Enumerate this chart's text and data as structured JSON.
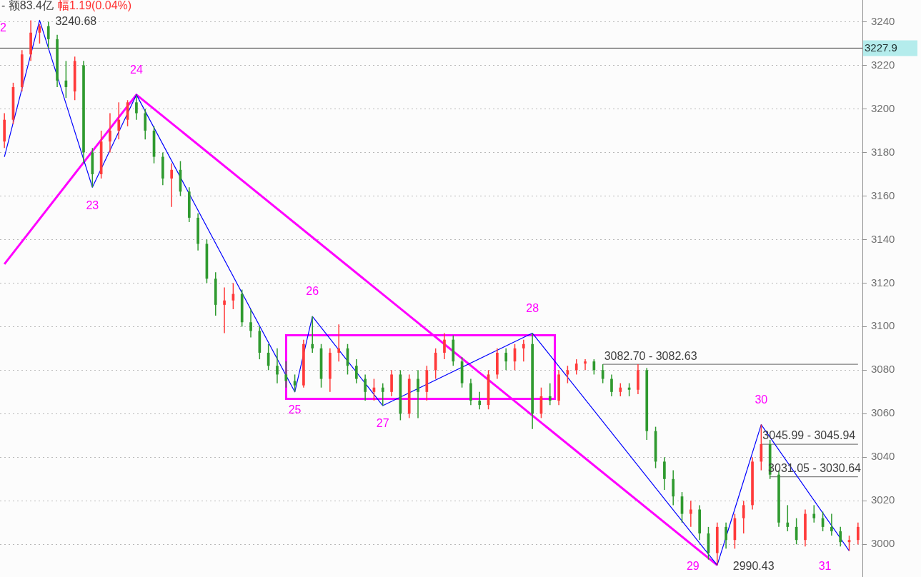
{
  "chart_data": {
    "type": "candlestick",
    "categories": [
      null,
      null,
      null,
      null,
      null,
      null,
      null,
      null,
      null,
      null,
      null,
      null,
      null,
      null,
      null,
      null,
      null,
      null,
      null,
      null,
      null,
      null,
      null,
      null,
      null,
      null,
      null,
      null,
      null,
      null,
      null,
      null,
      null,
      null,
      null,
      null,
      null,
      null,
      null,
      null,
      null,
      null,
      null,
      null,
      null,
      null,
      null,
      null,
      null,
      null,
      null,
      null,
      null,
      null,
      null,
      null,
      null,
      null,
      null,
      null,
      null,
      null,
      null,
      null,
      null,
      null,
      null,
      null,
      null,
      null,
      null,
      null,
      null,
      null,
      null,
      null,
      null,
      null,
      null,
      null,
      null,
      null,
      null,
      null,
      null,
      null,
      null,
      null,
      null,
      null,
      null,
      null,
      null,
      null,
      null,
      null,
      null,
      null
    ],
    "ohlc": [
      [
        3185,
        3198,
        3182,
        3195
      ],
      [
        3195,
        3212,
        3193,
        3210
      ],
      [
        3210,
        3227,
        3208,
        3225
      ],
      [
        3225,
        3240.68,
        3222,
        3235
      ],
      [
        3235,
        3239,
        3230,
        3238
      ],
      [
        3238,
        3240,
        3228,
        3232
      ],
      [
        3232,
        3234,
        3210,
        3213
      ],
      [
        3213,
        3222,
        3205,
        3210
      ],
      [
        3208,
        3224,
        3204,
        3222
      ],
      [
        3220,
        3222,
        3175,
        3180
      ],
      [
        3180,
        3182,
        3164,
        3170
      ],
      [
        3170,
        3190,
        3168,
        3185
      ],
      [
        3185,
        3198,
        3180,
        3190
      ],
      [
        3190,
        3203,
        3186,
        3195
      ],
      [
        3195,
        3204,
        3192,
        3203
      ],
      [
        3203,
        3206.5,
        3195,
        3198
      ],
      [
        3198,
        3200,
        3186,
        3190
      ],
      [
        3190,
        3192,
        3175,
        3178
      ],
      [
        3178,
        3180,
        3165,
        3168
      ],
      [
        3168,
        3175,
        3155,
        3172
      ],
      [
        3172,
        3176,
        3160,
        3162
      ],
      [
        3162,
        3164,
        3148,
        3150
      ],
      [
        3150,
        3152,
        3135,
        3138
      ],
      [
        3138,
        3140,
        3120,
        3122
      ],
      [
        3122,
        3125,
        3105,
        3110
      ],
      [
        3110,
        3118,
        3097,
        3112
      ],
      [
        3112,
        3120,
        3108,
        3115
      ],
      [
        3115,
        3117,
        3100,
        3102
      ],
      [
        3102,
        3108,
        3095,
        3098
      ],
      [
        3098,
        3100,
        3085,
        3088
      ],
      [
        3088,
        3092,
        3080,
        3082
      ],
      [
        3082,
        3090,
        3074,
        3078
      ],
      [
        3078,
        3084,
        3072,
        3075
      ],
      [
        3075,
        3078,
        3070,
        3073
      ],
      [
        3073,
        3094,
        3072,
        3092
      ],
      [
        3092,
        3104.7,
        3088,
        3090
      ],
      [
        3090,
        3092,
        3072,
        3076
      ],
      [
        3076,
        3090,
        3070,
        3088
      ],
      [
        3088,
        3101,
        3084,
        3090
      ],
      [
        3090,
        3092,
        3078,
        3082
      ],
      [
        3082,
        3085,
        3074,
        3076
      ],
      [
        3076,
        3078,
        3066,
        3070
      ],
      [
        3070,
        3076,
        3066,
        3072
      ],
      [
        3072,
        3074,
        3063.7,
        3070
      ],
      [
        3070,
        3080,
        3068,
        3078
      ],
      [
        3078,
        3080,
        3057,
        3060
      ],
      [
        3060,
        3078,
        3058,
        3076
      ],
      [
        3076,
        3080,
        3058,
        3070
      ],
      [
        3070,
        3082,
        3066,
        3080
      ],
      [
        3080,
        3090,
        3076,
        3088
      ],
      [
        3088,
        3097,
        3085,
        3094
      ],
      [
        3094,
        3096,
        3082,
        3084
      ],
      [
        3084,
        3086,
        3072,
        3074
      ],
      [
        3074,
        3076,
        3064,
        3066
      ],
      [
        3066,
        3070,
        3062,
        3064
      ],
      [
        3064,
        3080,
        3062,
        3078
      ],
      [
        3078,
        3090,
        3076,
        3088
      ],
      [
        3088,
        3090,
        3080,
        3084
      ],
      [
        3084,
        3092,
        3080,
        3090
      ],
      [
        3090,
        3094,
        3084,
        3092
      ],
      [
        3092,
        3097,
        3053,
        3060
      ],
      [
        3060,
        3072,
        3058,
        3068
      ],
      [
        3068,
        3074,
        3064,
        3066
      ],
      [
        3066,
        3080,
        3064,
        3078
      ],
      [
        3078,
        3082,
        3074,
        3080
      ],
      [
        3080,
        3085,
        3078,
        3083
      ],
      [
        3083,
        3085,
        3080,
        3084
      ],
      [
        3084,
        3085,
        3078,
        3080
      ],
      [
        3080,
        3082.7,
        3074,
        3076
      ],
      [
        3076,
        3078,
        3068,
        3070
      ],
      [
        3070,
        3074,
        3068,
        3072
      ],
      [
        3072,
        3074,
        3068,
        3071
      ],
      [
        3071,
        3082.7,
        3069,
        3080
      ],
      [
        3080,
        3081,
        3048,
        3052
      ],
      [
        3052,
        3054,
        3035,
        3038
      ],
      [
        3038,
        3040,
        3025,
        3030
      ],
      [
        3030,
        3034,
        3018,
        3022
      ],
      [
        3022,
        3024,
        3010,
        3014
      ],
      [
        3014,
        3020,
        3008,
        3016
      ],
      [
        3016,
        3018,
        3002,
        3005
      ],
      [
        3005,
        3008,
        2993,
        2996
      ],
      [
        2996,
        3010,
        2990.43,
        3008
      ],
      [
        3008,
        3010,
        2998,
        3002
      ],
      [
        3002,
        3014,
        2998,
        3012
      ],
      [
        3012,
        3020,
        3005,
        3018
      ],
      [
        3018,
        3040,
        3016,
        3038
      ],
      [
        3038,
        3055,
        3034,
        3046
      ],
      [
        3046,
        3048,
        3030,
        3032
      ],
      [
        3032,
        3034,
        3008,
        3010
      ],
      [
        3010,
        3018,
        3006,
        3008
      ],
      [
        3008,
        3012,
        3000,
        3002
      ],
      [
        3002,
        3016,
        2999,
        3014
      ],
      [
        3014,
        3018,
        3010,
        3012
      ],
      [
        3012,
        3015,
        3006,
        3008
      ],
      [
        3008,
        3014,
        3004,
        3006
      ],
      [
        3006,
        3008,
        2999,
        3001
      ],
      [
        3001,
        3004,
        2997,
        3002
      ],
      [
        3002,
        3010,
        3000,
        3008
      ]
    ],
    "series": [
      {
        "type": "line",
        "color": "#0000ff",
        "values": [
          3178,
          null,
          null,
          null,
          3240.68,
          null,
          null,
          null,
          null,
          null,
          3164,
          null,
          null,
          null,
          null,
          3206.5,
          null,
          null,
          null,
          null,
          null,
          null,
          null,
          null,
          null,
          null,
          null,
          null,
          null,
          null,
          null,
          null,
          null,
          3070,
          null,
          3104.7,
          null,
          null,
          null,
          null,
          null,
          null,
          null,
          3063.7,
          null,
          null,
          null,
          null,
          null,
          null,
          null,
          null,
          null,
          null,
          null,
          null,
          null,
          null,
          null,
          null,
          3097,
          null,
          null,
          null,
          null,
          null,
          null,
          null,
          null,
          null,
          null,
          null,
          null,
          null,
          null,
          null,
          null,
          null,
          null,
          null,
          null,
          2990.43,
          null,
          null,
          null,
          null,
          3055,
          null,
          null,
          null,
          null,
          null,
          null,
          null,
          null,
          null,
          2997,
          null
        ],
        "value_labels": [
          null,
          null,
          null,
          null,
          "3240.68",
          null,
          null,
          null,
          null,
          null,
          null,
          null,
          null,
          null,
          null,
          null,
          null,
          null,
          null,
          null,
          null,
          null,
          null,
          null,
          null,
          null,
          null,
          null,
          null,
          null,
          null,
          null,
          null,
          null,
          null,
          null,
          null,
          null,
          null,
          null,
          null,
          null,
          null,
          null,
          null,
          null,
          null,
          null,
          null,
          null,
          null,
          null,
          null,
          null,
          null,
          null,
          null,
          null,
          null,
          null,
          null,
          null,
          null,
          null,
          null,
          null,
          null,
          null,
          null,
          null,
          null,
          null,
          null,
          null,
          null,
          null,
          null,
          null,
          null,
          null,
          null,
          null,
          null,
          null,
          null,
          null,
          null,
          null,
          null,
          null,
          null,
          null,
          null,
          null,
          null,
          null,
          null,
          null
        ]
      },
      {
        "type": "line",
        "color": "#ff00ff",
        "values": [
          3128.7,
          null,
          null,
          null,
          null,
          null,
          null,
          null,
          null,
          null,
          null,
          null,
          null,
          null,
          null,
          3206.5,
          null,
          null,
          null,
          null,
          null,
          null,
          null,
          null,
          null,
          null,
          null,
          null,
          null,
          null,
          null,
          null,
          null,
          null,
          null,
          null,
          null,
          null,
          null,
          null,
          null,
          null,
          null,
          null,
          null,
          null,
          null,
          null,
          null,
          null,
          null,
          null,
          null,
          null,
          null,
          null,
          null,
          null,
          null,
          null,
          null,
          null,
          null,
          null,
          null,
          null,
          null,
          null,
          null,
          null,
          null,
          null,
          null,
          null,
          null,
          null,
          null,
          null,
          null,
          null,
          null,
          2990.43,
          null,
          null,
          null,
          null,
          null,
          null,
          null,
          null,
          null,
          null,
          null,
          null,
          null,
          null,
          null,
          null
        ],
        "value_labels": [
          null,
          null,
          null,
          null,
          null,
          null,
          null,
          null,
          null,
          null,
          null,
          null,
          null,
          null,
          null,
          null,
          null,
          null,
          null,
          null,
          null,
          null,
          null,
          null,
          null,
          null,
          null,
          null,
          null,
          null,
          null,
          null,
          null,
          null,
          null,
          null,
          null,
          null,
          null,
          null,
          null,
          null,
          null,
          null,
          null,
          null,
          null,
          null,
          null,
          null,
          null,
          null,
          null,
          null,
          null,
          null,
          null,
          null,
          null,
          null,
          null,
          null,
          null,
          null,
          null,
          null,
          null,
          null,
          null,
          null,
          null,
          null,
          null,
          null,
          null,
          null,
          null,
          null,
          null,
          null,
          null,
          "2990.43",
          null,
          null,
          null,
          null,
          null,
          null,
          null,
          null,
          null,
          null,
          null,
          null,
          null,
          null,
          null,
          null
        ]
      },
      {
        "type": "line",
        "color": "#808080",
        "values": [
          null,
          null,
          null,
          null,
          null,
          null,
          null,
          null,
          null,
          null,
          null,
          null,
          null,
          null,
          null,
          null,
          null,
          null,
          null,
          null,
          null,
          null,
          null,
          null,
          null,
          null,
          null,
          null,
          null,
          null,
          null,
          null,
          null,
          null,
          null,
          null,
          null,
          null,
          null,
          null,
          null,
          null,
          null,
          null,
          null,
          null,
          null,
          null,
          null,
          null,
          null,
          null,
          null,
          null,
          null,
          null,
          null,
          null,
          null,
          null,
          null,
          null,
          null,
          null,
          null,
          null,
          null,
          null,
          3082.7,
          3082.7,
          3082.7,
          3082.7,
          3082.7,
          3082.7,
          3082.7,
          3082.7,
          3082.7,
          3082.7,
          3082.7,
          3082.7,
          3082.7,
          3082.7,
          3082.7,
          3082.7,
          3082.7,
          3082.7,
          3082.7,
          3082.7,
          3082.7,
          3082.7,
          3082.7,
          3082.7,
          3082.7,
          3082.7,
          3082.7,
          3082.7,
          3082.7,
          3082.7
        ],
        "value_labels": [
          null,
          null,
          null,
          null,
          null,
          null,
          null,
          null,
          null,
          null,
          null,
          null,
          null,
          null,
          null,
          null,
          null,
          null,
          null,
          null,
          null,
          null,
          null,
          null,
          null,
          null,
          null,
          null,
          null,
          null,
          null,
          null,
          null,
          null,
          null,
          null,
          null,
          null,
          null,
          null,
          null,
          null,
          null,
          null,
          null,
          null,
          null,
          null,
          null,
          null,
          null,
          null,
          null,
          null,
          null,
          null,
          null,
          null,
          null,
          null,
          null,
          null,
          null,
          null,
          null,
          null,
          null,
          null,
          "3082.70 - 3082.63",
          null,
          null,
          null,
          null,
          null,
          null,
          null,
          null,
          null,
          null,
          null,
          null,
          null,
          null,
          null,
          null,
          null,
          null,
          null,
          null,
          null,
          null,
          null,
          null,
          null,
          null,
          null,
          null,
          null
        ]
      },
      {
        "type": "line",
        "color": "#808080",
        "values": [
          null,
          null,
          null,
          null,
          null,
          null,
          null,
          null,
          null,
          null,
          null,
          null,
          null,
          null,
          null,
          null,
          null,
          null,
          null,
          null,
          null,
          null,
          null,
          null,
          null,
          null,
          null,
          null,
          null,
          null,
          null,
          null,
          null,
          null,
          null,
          null,
          null,
          null,
          null,
          null,
          null,
          null,
          null,
          null,
          null,
          null,
          null,
          null,
          null,
          null,
          null,
          null,
          null,
          null,
          null,
          null,
          null,
          null,
          null,
          null,
          null,
          null,
          null,
          null,
          null,
          null,
          null,
          null,
          null,
          null,
          null,
          null,
          null,
          null,
          null,
          null,
          null,
          null,
          null,
          null,
          null,
          null,
          null,
          null,
          null,
          null,
          3045.99,
          3045.99,
          3045.99,
          3045.99,
          3045.99,
          3045.99,
          3045.99,
          3045.99,
          3045.99,
          3045.99,
          3045.99,
          3045.99
        ],
        "value_labels": [
          null,
          null,
          null,
          null,
          null,
          null,
          null,
          null,
          null,
          null,
          null,
          null,
          null,
          null,
          null,
          null,
          null,
          null,
          null,
          null,
          null,
          null,
          null,
          null,
          null,
          null,
          null,
          null,
          null,
          null,
          null,
          null,
          null,
          null,
          null,
          null,
          null,
          null,
          null,
          null,
          null,
          null,
          null,
          null,
          null,
          null,
          null,
          null,
          null,
          null,
          null,
          null,
          null,
          null,
          null,
          null,
          null,
          null,
          null,
          null,
          null,
          null,
          null,
          null,
          null,
          null,
          null,
          null,
          null,
          null,
          null,
          null,
          null,
          null,
          null,
          null,
          null,
          null,
          null,
          null,
          null,
          null,
          null,
          null,
          null,
          null,
          "3045.99 - 3045.94",
          null,
          null,
          null,
          null,
          null,
          null,
          null,
          null,
          null,
          null,
          null
        ]
      },
      {
        "type": "line",
        "color": "#808080",
        "values": [
          null,
          null,
          null,
          null,
          null,
          null,
          null,
          null,
          null,
          null,
          null,
          null,
          null,
          null,
          null,
          null,
          null,
          null,
          null,
          null,
          null,
          null,
          null,
          null,
          null,
          null,
          null,
          null,
          null,
          null,
          null,
          null,
          null,
          null,
          null,
          null,
          null,
          null,
          null,
          null,
          null,
          null,
          null,
          null,
          null,
          null,
          null,
          null,
          null,
          null,
          null,
          null,
          null,
          null,
          null,
          null,
          null,
          null,
          null,
          null,
          null,
          null,
          null,
          null,
          null,
          null,
          null,
          null,
          null,
          null,
          null,
          null,
          null,
          null,
          null,
          null,
          null,
          null,
          null,
          null,
          null,
          null,
          null,
          null,
          null,
          null,
          null,
          3031.05,
          3031.05,
          3031.05,
          3031.05,
          3031.05,
          3031.05,
          3031.05,
          3031.05,
          3031.05,
          3031.05,
          3031.05
        ],
        "value_labels": [
          null,
          null,
          null,
          null,
          null,
          null,
          null,
          null,
          null,
          null,
          null,
          null,
          null,
          null,
          null,
          null,
          null,
          null,
          null,
          null,
          null,
          null,
          null,
          null,
          null,
          null,
          null,
          null,
          null,
          null,
          null,
          null,
          null,
          null,
          null,
          null,
          null,
          null,
          null,
          null,
          null,
          null,
          null,
          null,
          null,
          null,
          null,
          null,
          null,
          null,
          null,
          null,
          null,
          null,
          null,
          null,
          null,
          null,
          null,
          null,
          null,
          null,
          null,
          null,
          null,
          null,
          null,
          null,
          null,
          null,
          null,
          null,
          null,
          null,
          null,
          null,
          null,
          null,
          null,
          null,
          null,
          null,
          null,
          null,
          null,
          null,
          null,
          "3031.05 - 3030.64",
          null,
          null,
          null,
          null,
          null,
          null,
          null,
          null,
          null,
          null
        ]
      }
    ],
    "ylim": [
      2985,
      3250
    ],
    "yticks": [
      3000,
      3020,
      3040,
      3060,
      3080,
      3100,
      3120,
      3140,
      3160,
      3180,
      3200,
      3220,
      3240
    ],
    "tick_labels": "y",
    "grid": true,
    "legend": false,
    "marker": "none",
    "ref_lines": [
      {
        "axis": "y",
        "value": 3227.9,
        "label": "3227.9",
        "color": "#404040"
      }
    ],
    "annotations": [
      "- 额83.4亿",
      "幅1.19(0.04%)",
      "2",
      "23",
      "24",
      "25",
      "26",
      "27",
      "28",
      "29",
      "30",
      "31"
    ]
  }
}
